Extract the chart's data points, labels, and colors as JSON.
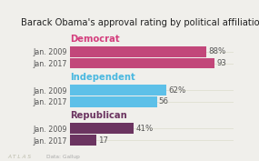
{
  "title": "Barack Obama's approval rating by political affiliation",
  "groups": [
    "Democrat",
    "Independent",
    "Republican"
  ],
  "group_colors": [
    "#c2477a",
    "#5dc0e8",
    "#6b3460"
  ],
  "group_label_colors": [
    "#d4407e",
    "#4ab8e0",
    "#6b3460"
  ],
  "years": [
    "Jan. 2009",
    "Jan. 2017"
  ],
  "values": [
    [
      88,
      93
    ],
    [
      62,
      56
    ],
    [
      41,
      17
    ]
  ],
  "labels": [
    [
      "88%",
      "93"
    ],
    [
      "62%",
      "56"
    ],
    [
      "41%",
      "17"
    ]
  ],
  "background_color": "#f0efeb",
  "bar_height": 0.28,
  "title_fontsize": 7.2,
  "label_fontsize": 6.2,
  "tick_fontsize": 5.8,
  "group_label_fontsize": 7.2,
  "xlim": [
    0,
    105
  ],
  "footer_left": "A T L A S",
  "footer_right": "Data: Gallup"
}
